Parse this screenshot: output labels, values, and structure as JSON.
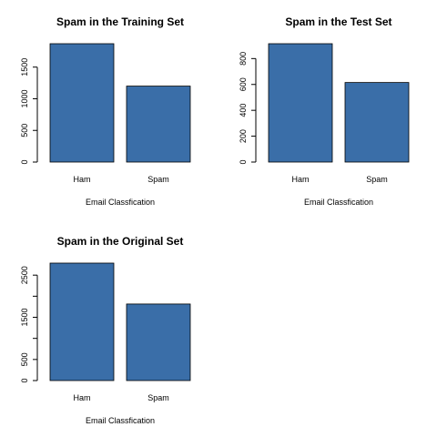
{
  "chart_data": [
    {
      "type": "bar",
      "title": "Spam in the Training Set",
      "xlabel": "Email Classfication",
      "ylabel": "",
      "categories": [
        "Ham",
        "Spam"
      ],
      "values": [
        1870,
        1200
      ],
      "ylim": [
        0,
        1870
      ],
      "yticks": [
        0,
        500,
        1000,
        1500
      ],
      "bar_color": "#3a6ea8"
    },
    {
      "type": "bar",
      "title": "Spam in the Test Set",
      "xlabel": "Email Classfication",
      "ylabel": "",
      "categories": [
        "Ham",
        "Spam"
      ],
      "values": [
        915,
        615
      ],
      "ylim": [
        0,
        915
      ],
      "yticks": [
        0,
        200,
        400,
        600,
        800
      ],
      "bar_color": "#3a6ea8"
    },
    {
      "type": "bar",
      "title": "Spam in the Original Set",
      "xlabel": "Email Classfication",
      "ylabel": "",
      "categories": [
        "Ham",
        "Spam"
      ],
      "values": [
        2785,
        1815
      ],
      "ylim": [
        0,
        2785
      ],
      "yticks": [
        0,
        500,
        1500,
        2500
      ],
      "yticks_unlabeled": [
        1000,
        2000
      ],
      "bar_color": "#3a6ea8"
    }
  ]
}
